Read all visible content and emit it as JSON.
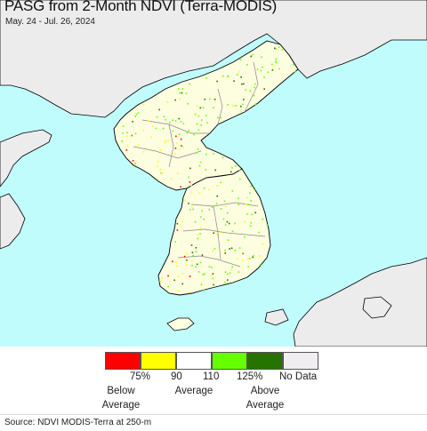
{
  "map": {
    "title": "PASG from 2-Month NDVI (Terra-MODIS)",
    "subtitle": "May. 24 - Jul. 26, 2024",
    "colors": {
      "sea": "#c0fcfc",
      "foreign_land": "#ececec",
      "land_base": "#fdfde0",
      "border": "#8a8a8a",
      "coast": "#000000"
    }
  },
  "legend": {
    "classes": [
      {
        "color": "#ff0000"
      },
      {
        "color": "#ffff00"
      },
      {
        "color": "#ffffff"
      },
      {
        "color": "#66ff00"
      },
      {
        "color": "#267300"
      },
      {
        "color": "#f0eef0"
      }
    ],
    "ticks": [
      "75%",
      "90",
      "110",
      "125%"
    ],
    "below_line1": "Below",
    "below_line2": "Average",
    "average": "Average",
    "above_line1": "Above",
    "above_line2": "Average",
    "no_data": "No Data"
  },
  "source": "Source: NDVI MODIS-Terra at 250-m"
}
